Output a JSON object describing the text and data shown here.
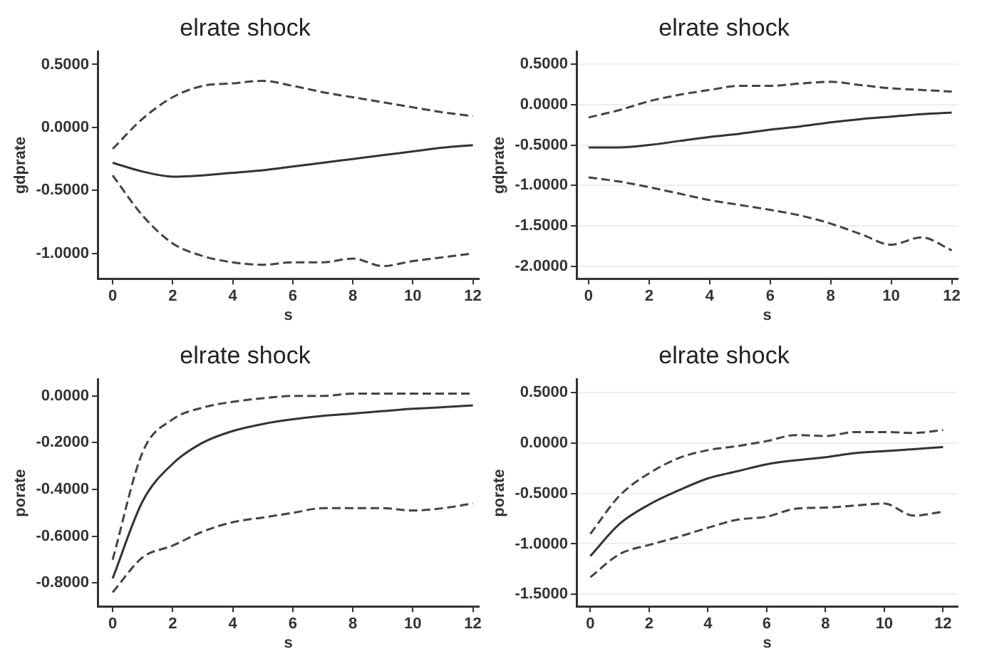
{
  "chart_data": [
    {
      "type": "line",
      "title": "elrate shock",
      "xlabel": "s",
      "ylabel": "gdprate",
      "x": [
        0,
        1,
        2,
        3,
        4,
        5,
        6,
        7,
        8,
        9,
        10,
        11,
        12
      ],
      "xlim": [
        -0.5,
        12.2
      ],
      "xticks": [
        0,
        2,
        4,
        6,
        8,
        10,
        12
      ],
      "ylim": [
        -1.2,
        0.6
      ],
      "yticks": [
        {
          "value": 0.5,
          "label": "0.5000"
        },
        {
          "value": 0,
          "label": "0.0000"
        },
        {
          "value": -0.5,
          "label": "-0.5000"
        },
        {
          "value": -1,
          "label": "-1.0000"
        }
      ],
      "grid": false,
      "legend": false,
      "marker": "none",
      "series": [
        {
          "color": "#333333",
          "line_style": "solid",
          "values": [
            -0.28,
            -0.35,
            -0.39,
            -0.38,
            -0.36,
            -0.34,
            -0.31,
            -0.28,
            -0.25,
            -0.22,
            -0.19,
            -0.16,
            -0.14
          ]
        },
        {
          "color": "#444444",
          "line_style": "dashed",
          "values": [
            -0.17,
            0.07,
            0.24,
            0.33,
            0.35,
            0.37,
            0.33,
            0.28,
            0.24,
            0.2,
            0.16,
            0.12,
            0.09
          ]
        },
        {
          "color": "#444444",
          "line_style": "dashed",
          "values": [
            -0.38,
            -0.7,
            -0.92,
            -1.02,
            -1.07,
            -1.09,
            -1.07,
            -1.07,
            -1.04,
            -1.1,
            -1.06,
            -1.03,
            -1.0
          ]
        }
      ]
    },
    {
      "type": "line",
      "title": "elrate shock",
      "xlabel": "s",
      "ylabel": "gdprate",
      "x": [
        0,
        1,
        2,
        3,
        4,
        5,
        6,
        7,
        8,
        9,
        10,
        11,
        12
      ],
      "xlim": [
        -0.4,
        12.2
      ],
      "xticks": [
        0,
        2,
        4,
        6,
        8,
        10,
        12
      ],
      "ylim": [
        -2.15,
        0.65
      ],
      "yticks": [
        {
          "value": 0.5,
          "label": "0.5000"
        },
        {
          "value": 0,
          "label": "0.0000"
        },
        {
          "value": -0.5,
          "label": "-0.5000"
        },
        {
          "value": -1,
          "label": "-1.0000"
        },
        {
          "value": -1.5,
          "label": "-1.5000"
        },
        {
          "value": -2,
          "label": "-2.0000"
        }
      ],
      "grid": "y",
      "legend": false,
      "marker": "none",
      "series": [
        {
          "color": "#333333",
          "line_style": "solid",
          "values": [
            -0.53,
            -0.53,
            -0.5,
            -0.45,
            -0.4,
            -0.36,
            -0.31,
            -0.27,
            -0.22,
            -0.18,
            -0.15,
            -0.12,
            -0.1
          ]
        },
        {
          "color": "#444444",
          "line_style": "dashed",
          "values": [
            -0.16,
            -0.07,
            0.04,
            0.12,
            0.18,
            0.23,
            0.23,
            0.26,
            0.28,
            0.24,
            0.2,
            0.18,
            0.16
          ]
        },
        {
          "color": "#444444",
          "line_style": "dashed",
          "values": [
            -0.9,
            -0.95,
            -1.02,
            -1.1,
            -1.18,
            -1.24,
            -1.3,
            -1.37,
            -1.47,
            -1.6,
            -1.73,
            -1.64,
            -1.8
          ]
        }
      ]
    },
    {
      "type": "line",
      "title": "elrate shock",
      "xlabel": "s",
      "ylabel": "porate",
      "x": [
        0,
        1,
        2,
        3,
        4,
        5,
        6,
        7,
        8,
        9,
        10,
        11,
        12
      ],
      "xlim": [
        -0.5,
        12.2
      ],
      "xticks": [
        0,
        2,
        4,
        6,
        8,
        10,
        12
      ],
      "ylim": [
        -0.9,
        0.07
      ],
      "yticks": [
        {
          "value": 0,
          "label": "0.0000"
        },
        {
          "value": -0.2,
          "label": "-0.2000"
        },
        {
          "value": -0.4,
          "label": "-0.4000"
        },
        {
          "value": -0.6,
          "label": "-0.6000"
        },
        {
          "value": -0.8,
          "label": "-0.8000"
        }
      ],
      "grid": false,
      "legend": false,
      "marker": "none",
      "series": [
        {
          "color": "#333333",
          "line_style": "solid",
          "values": [
            -0.78,
            -0.45,
            -0.29,
            -0.2,
            -0.15,
            -0.12,
            -0.1,
            -0.085,
            -0.075,
            -0.065,
            -0.055,
            -0.048,
            -0.04
          ]
        },
        {
          "color": "#444444",
          "line_style": "dashed",
          "values": [
            -0.7,
            -0.24,
            -0.1,
            -0.05,
            -0.025,
            -0.01,
            0.0,
            0.0,
            0.01,
            0.01,
            0.01,
            0.01,
            0.01
          ]
        },
        {
          "color": "#444444",
          "line_style": "dashed",
          "values": [
            -0.84,
            -0.69,
            -0.64,
            -0.58,
            -0.54,
            -0.52,
            -0.5,
            -0.48,
            -0.48,
            -0.48,
            -0.49,
            -0.48,
            -0.46
          ]
        }
      ]
    },
    {
      "type": "line",
      "title": "elrate shock",
      "xlabel": "s",
      "ylabel": "porate",
      "x": [
        0,
        1,
        2,
        3,
        4,
        5,
        6,
        7,
        8,
        9,
        10,
        11,
        12
      ],
      "xlim": [
        -0.47,
        12.5
      ],
      "xticks": [
        0,
        2,
        4,
        6,
        8,
        10,
        12
      ],
      "ylim": [
        -1.62,
        0.63
      ],
      "yticks": [
        {
          "value": 0.5,
          "label": "0.5000"
        },
        {
          "value": 0,
          "label": "0.0000"
        },
        {
          "value": -0.5,
          "label": "-0.5000"
        },
        {
          "value": -1,
          "label": "-1.0000"
        },
        {
          "value": -1.5,
          "label": "-1.5000"
        }
      ],
      "grid": "y",
      "legend": false,
      "marker": "none",
      "series": [
        {
          "color": "#333333",
          "line_style": "solid",
          "values": [
            -1.12,
            -0.8,
            -0.61,
            -0.47,
            -0.35,
            -0.28,
            -0.21,
            -0.17,
            -0.14,
            -0.1,
            -0.08,
            -0.06,
            -0.04
          ]
        },
        {
          "color": "#444444",
          "line_style": "dashed",
          "values": [
            -0.9,
            -0.52,
            -0.3,
            -0.15,
            -0.07,
            -0.03,
            0.02,
            0.08,
            0.07,
            0.11,
            0.11,
            0.1,
            0.13
          ]
        },
        {
          "color": "#444444",
          "line_style": "dashed",
          "values": [
            -1.33,
            -1.1,
            -1.01,
            -0.93,
            -0.84,
            -0.76,
            -0.73,
            -0.65,
            -0.64,
            -0.62,
            -0.6,
            -0.72,
            -0.68
          ]
        }
      ]
    }
  ]
}
